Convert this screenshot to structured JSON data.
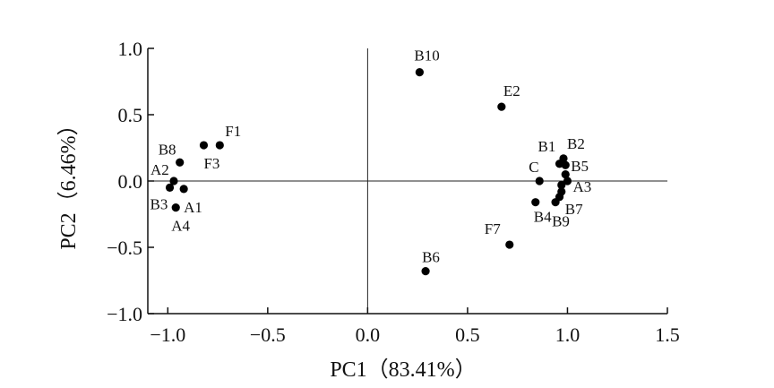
{
  "chart_data": {
    "type": "scatter",
    "xlabel": "PC1（83.41%）",
    "ylabel": "PC2（6.46%）",
    "xlim": [
      -1.1,
      1.5
    ],
    "ylim": [
      -1.0,
      1.0
    ],
    "xticks": [
      -1.0,
      -0.5,
      0.0,
      0.5,
      1.0,
      1.5
    ],
    "yticks": [
      -1.0,
      -0.5,
      0.0,
      0.5,
      1.0
    ],
    "xtick_labels": [
      "−1.0",
      "−0.5",
      "0.0",
      "0.5",
      "1.0",
      "1.5"
    ],
    "ytick_labels": [
      "−1.0",
      "−0.5",
      "0.0",
      "0.5",
      "1.0"
    ],
    "reference_lines": {
      "x": 0.0,
      "y": 0.0
    },
    "grid": false,
    "marker_color": "#000000",
    "points": [
      {
        "label": "B10",
        "x": 0.26,
        "y": 0.82
      },
      {
        "label": "E2",
        "x": 0.67,
        "y": 0.56
      },
      {
        "label": "F1",
        "x": -0.74,
        "y": 0.27
      },
      {
        "label": "F3",
        "x": -0.82,
        "y": 0.27
      },
      {
        "label": "B8",
        "x": -0.94,
        "y": 0.14
      },
      {
        "label": "A2",
        "x": -0.97,
        "y": 0.0
      },
      {
        "label": "B3",
        "x": -0.99,
        "y": -0.05
      },
      {
        "label": "A1",
        "x": -0.92,
        "y": -0.06
      },
      {
        "label": "A4",
        "x": -0.96,
        "y": -0.2
      },
      {
        "label": "B1",
        "x": 0.96,
        "y": 0.13
      },
      {
        "label": "B2",
        "x": 0.98,
        "y": 0.17
      },
      {
        "label": "B5",
        "x": 0.99,
        "y": 0.12
      },
      {
        "label": "C",
        "x": 0.86,
        "y": 0.0
      },
      {
        "label": "A3",
        "x": 1.0,
        "y": 0.0
      },
      {
        "label": "B7",
        "x": 0.97,
        "y": -0.08
      },
      {
        "label": "B9",
        "x": 0.94,
        "y": -0.16
      },
      {
        "label": "B4",
        "x": 0.84,
        "y": -0.16
      },
      {
        "label": "F7",
        "x": 0.71,
        "y": -0.48
      },
      {
        "label": "B6",
        "x": 0.29,
        "y": -0.68
      }
    ],
    "extra_points": [
      {
        "x": 0.99,
        "y": 0.05
      },
      {
        "x": 0.97,
        "y": -0.03
      },
      {
        "x": 0.96,
        "y": -0.12
      }
    ]
  }
}
